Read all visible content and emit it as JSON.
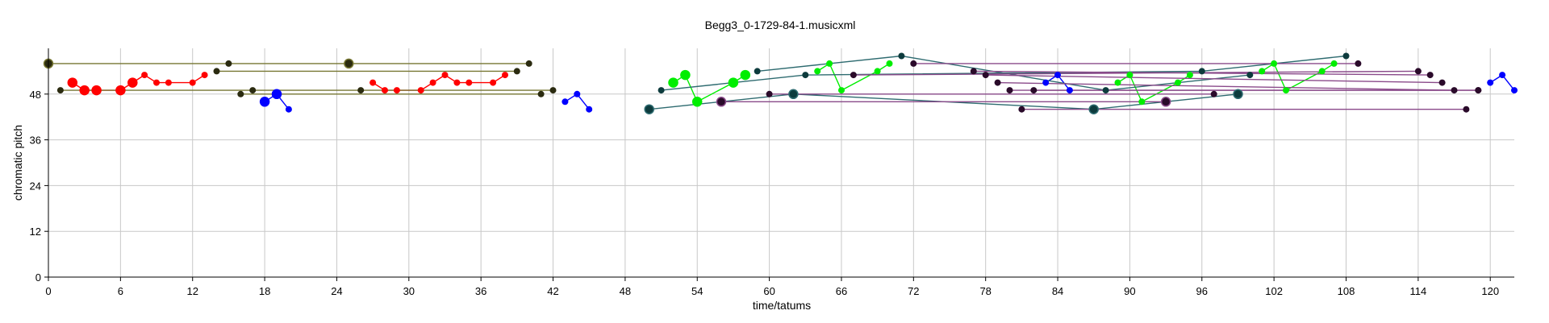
{
  "chart_data": {
    "type": "scatter",
    "title": "Begg3_0-1729-84-1.musicxml",
    "xlabel": "time/tatums",
    "ylabel": "chromatic pitch",
    "xlim": [
      0,
      122
    ],
    "ylim": [
      0,
      60
    ],
    "xticks": [
      0,
      6,
      12,
      18,
      24,
      30,
      36,
      42,
      48,
      54,
      60,
      66,
      72,
      78,
      84,
      90,
      96,
      102,
      108,
      114,
      120
    ],
    "yticks": [
      0,
      12,
      24,
      36,
      48
    ],
    "grid": true,
    "colors": {
      "red": "#ff0000",
      "blue": "#0000ff",
      "green": "#00ee00",
      "olive": "#777733",
      "olive_dot": "#2b2b10",
      "teal": "#2e6b70",
      "teal_dot": "#0d3b3d",
      "purple": "#8a4a8a",
      "purple_dot": "#2a0a2a"
    },
    "series": [
      {
        "color": "red",
        "line": "red",
        "points": [
          [
            2,
            51,
            1
          ],
          [
            3,
            49,
            1
          ],
          [
            4,
            49,
            1
          ],
          [
            6,
            49,
            1
          ],
          [
            7,
            51,
            1
          ],
          [
            8,
            53,
            0
          ],
          [
            9,
            51,
            0
          ],
          [
            10,
            51,
            0
          ],
          [
            12,
            51,
            0
          ],
          [
            13,
            53,
            0
          ]
        ]
      },
      {
        "color": "red",
        "line": "red",
        "points": [
          [
            27,
            51,
            0
          ],
          [
            28,
            49,
            0
          ],
          [
            29,
            49,
            0
          ],
          [
            31,
            49,
            0
          ],
          [
            32,
            51,
            0
          ],
          [
            33,
            53,
            0
          ],
          [
            34,
            51,
            0
          ],
          [
            35,
            51,
            0
          ],
          [
            37,
            51,
            0
          ],
          [
            38,
            53,
            0
          ]
        ]
      },
      {
        "color": "blue",
        "line": "blue",
        "points": [
          [
            18,
            46,
            1
          ],
          [
            19,
            48,
            1
          ],
          [
            20,
            44,
            0
          ]
        ]
      },
      {
        "color": "blue",
        "line": "blue",
        "points": [
          [
            43,
            46,
            0
          ],
          [
            44,
            48,
            0
          ],
          [
            45,
            44,
            0
          ]
        ]
      },
      {
        "color": "blue",
        "line": "blue",
        "points": [
          [
            83,
            51,
            0
          ],
          [
            84,
            53,
            0
          ],
          [
            85,
            49,
            0
          ]
        ]
      },
      {
        "color": "blue",
        "line": "blue",
        "points": [
          [
            120,
            51,
            0
          ],
          [
            121,
            53,
            0
          ],
          [
            122,
            49,
            0
          ]
        ]
      },
      {
        "color": "green",
        "line": "green",
        "points": [
          [
            52,
            51,
            1
          ],
          [
            53,
            53,
            1
          ],
          [
            54,
            46,
            1
          ],
          [
            57,
            51,
            1
          ],
          [
            58,
            53,
            1
          ]
        ]
      },
      {
        "color": "green",
        "line": "green",
        "points": [
          [
            64,
            54,
            0
          ],
          [
            65,
            56,
            0
          ],
          [
            66,
            49,
            0
          ],
          [
            69,
            54,
            0
          ],
          [
            70,
            56,
            0
          ]
        ]
      },
      {
        "color": "green",
        "line": "green",
        "points": [
          [
            89,
            51,
            0
          ],
          [
            90,
            53,
            0
          ],
          [
            91,
            46,
            0
          ],
          [
            94,
            51,
            0
          ],
          [
            95,
            53,
            0
          ]
        ]
      },
      {
        "color": "green",
        "line": "green",
        "points": [
          [
            101,
            54,
            0
          ],
          [
            102,
            56,
            0
          ],
          [
            103,
            49,
            0
          ],
          [
            106,
            54,
            0
          ],
          [
            107,
            56,
            0
          ]
        ]
      },
      {
        "color": "olive_dot",
        "line": "olive",
        "points": [
          [
            0,
            56,
            1
          ],
          [
            15,
            56,
            0
          ],
          [
            25,
            56,
            1
          ],
          [
            40,
            56,
            0
          ]
        ]
      },
      {
        "color": "olive_dot",
        "line": "olive",
        "points": [
          [
            1,
            49,
            0
          ],
          [
            17,
            49,
            0
          ],
          [
            26,
            49,
            0
          ],
          [
            42,
            49,
            0
          ]
        ]
      },
      {
        "color": "olive_dot",
        "line": "olive",
        "points": [
          [
            14,
            54,
            0
          ],
          [
            39,
            54,
            0
          ]
        ]
      },
      {
        "color": "olive_dot",
        "line": "olive",
        "points": [
          [
            16,
            48,
            0
          ],
          [
            41,
            48,
            0
          ]
        ]
      },
      {
        "color": "teal_dot",
        "line": "teal",
        "points": [
          [
            50,
            44,
            1
          ],
          [
            62,
            48,
            1
          ],
          [
            87,
            44,
            1
          ],
          [
            99,
            48,
            1
          ]
        ]
      },
      {
        "color": "teal_dot",
        "line": "teal",
        "points": [
          [
            51,
            49,
            0
          ],
          [
            63,
            53,
            0
          ],
          [
            96,
            54,
            0
          ],
          [
            108,
            58,
            0
          ]
        ]
      },
      {
        "color": "teal_dot",
        "line": "teal",
        "points": [
          [
            59,
            54,
            0
          ],
          [
            71,
            58,
            0
          ],
          [
            88,
            49,
            0
          ],
          [
            100,
            53,
            0
          ]
        ]
      },
      {
        "color": "purple_dot",
        "line": "purple",
        "points": [
          [
            56,
            46,
            1
          ],
          [
            93,
            46,
            1
          ]
        ]
      },
      {
        "color": "purple_dot",
        "line": "purple",
        "points": [
          [
            60,
            48,
            0
          ],
          [
            97,
            48,
            0
          ]
        ]
      },
      {
        "color": "purple_dot",
        "line": "purple",
        "points": [
          [
            67,
            53,
            0
          ],
          [
            114,
            54,
            0
          ]
        ]
      },
      {
        "color": "purple_dot",
        "line": "purple",
        "points": [
          [
            72,
            56,
            0
          ],
          [
            109,
            56,
            0
          ]
        ]
      },
      {
        "color": "purple_dot",
        "line": "purple",
        "points": [
          [
            77,
            54,
            0
          ],
          [
            115,
            53,
            0
          ]
        ]
      },
      {
        "color": "purple_dot",
        "line": "purple",
        "points": [
          [
            78,
            53,
            0
          ],
          [
            116,
            51,
            0
          ]
        ]
      },
      {
        "color": "purple_dot",
        "line": "purple",
        "points": [
          [
            79,
            51,
            0
          ],
          [
            117,
            49,
            0
          ]
        ]
      },
      {
        "color": "purple_dot",
        "line": "purple",
        "points": [
          [
            80,
            49,
            0
          ],
          [
            119,
            49,
            0
          ]
        ]
      },
      {
        "color": "purple_dot",
        "line": "purple",
        "points": [
          [
            81,
            44,
            0
          ],
          [
            118,
            44,
            0
          ]
        ]
      },
      {
        "color": "purple_dot",
        "line": "purple",
        "points": [
          [
            82,
            49,
            0
          ],
          [
            119,
            49,
            0
          ]
        ]
      }
    ]
  }
}
